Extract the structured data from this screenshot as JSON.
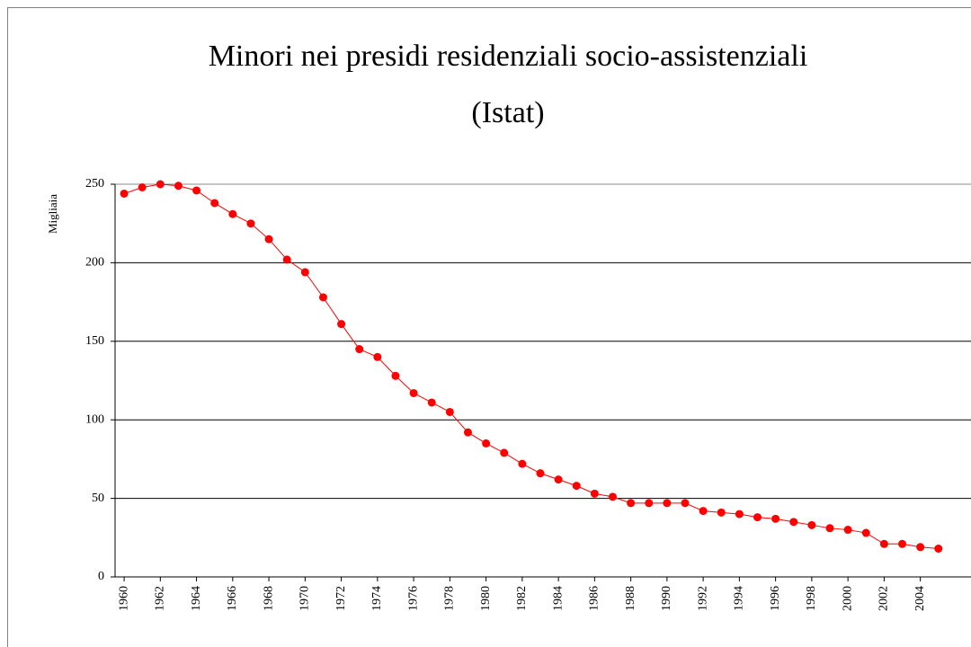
{
  "chart_data": {
    "type": "line",
    "title": [
      "Minori nei presidi residenziali socio-assistenziali",
      "(Istat)"
    ],
    "y_label": "Migliaia",
    "x": [
      1960,
      1961,
      1962,
      1963,
      1964,
      1965,
      1966,
      1967,
      1968,
      1969,
      1970,
      1971,
      1972,
      1973,
      1974,
      1975,
      1976,
      1977,
      1978,
      1979,
      1980,
      1981,
      1982,
      1983,
      1984,
      1985,
      1986,
      1987,
      1988,
      1989,
      1990,
      1991,
      1992,
      1993,
      1994,
      1995,
      1996,
      1997,
      1998,
      1999,
      2000,
      2001,
      2002,
      2003,
      2004,
      2005
    ],
    "series": [
      {
        "color": "#ff0000",
        "values": [
          244,
          248,
          250,
          249,
          246,
          238,
          231,
          225,
          215,
          202,
          194,
          178,
          161,
          145,
          140,
          128,
          117,
          111,
          105,
          92,
          85,
          79,
          72,
          66,
          62,
          58,
          53,
          51,
          47,
          47,
          47,
          47,
          42,
          41,
          40,
          38,
          37,
          35,
          33,
          31,
          30,
          28,
          21,
          21,
          19,
          18
        ]
      }
    ],
    "xlim": [
      1959.5,
      2006.8
    ],
    "xticks": [
      1960,
      1962,
      1964,
      1966,
      1968,
      1970,
      1972,
      1974,
      1976,
      1978,
      1980,
      1982,
      1984,
      1986,
      1988,
      1990,
      1992,
      1994,
      1996,
      1998,
      2000,
      2002,
      2004
    ],
    "ylim": [
      0,
      250
    ],
    "yticks": [
      0,
      50,
      100,
      150,
      200,
      250
    ],
    "grid": true
  }
}
